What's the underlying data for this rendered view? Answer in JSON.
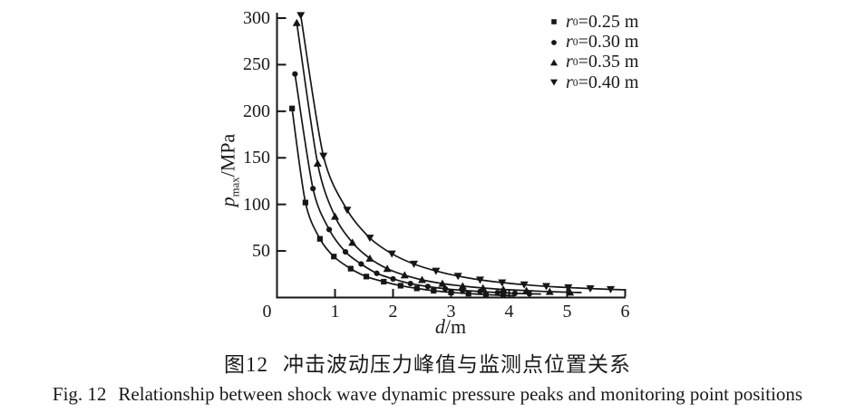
{
  "figure": {
    "caption_zh_label": "图12",
    "caption_zh_text": "冲击波动压力峰值与监测点位置关系",
    "caption_en_label": "Fig. 12",
    "caption_en_text": "Relationship between shock wave dynamic pressure peaks and monitoring point positions"
  },
  "chart_data": {
    "type": "line",
    "title": "",
    "xlabel": "d/m",
    "ylabel": "p_max/MPa",
    "xlabel_parts": {
      "var": "d",
      "unit": "/m"
    },
    "ylabel_parts": {
      "var": "p",
      "sub": "max",
      "unit": "/MPa"
    },
    "xlim": [
      0,
      6
    ],
    "ylim": [
      0,
      300
    ],
    "x_ticks": [
      0,
      1,
      2,
      3,
      4,
      5,
      6
    ],
    "y_ticks": [
      0,
      50,
      100,
      150,
      200,
      250,
      300
    ],
    "x_tick_labels": [
      "0",
      "1",
      "2",
      "3",
      "4",
      "5",
      "6"
    ],
    "y_tick_labels": [
      "50",
      "100",
      "150",
      "200",
      "250",
      "300"
    ],
    "grid": false,
    "legend_position": "top-right",
    "ink_color": "#161616",
    "series": [
      {
        "name": "r0=0.25 m",
        "marker": "square",
        "label_parts": {
          "var": "r",
          "sub": "0",
          "rest": "=0.25 m"
        },
        "points": [
          [
            0.26,
            203
          ],
          [
            0.49,
            102
          ],
          [
            0.74,
            63
          ],
          [
            0.98,
            44
          ],
          [
            1.27,
            31
          ],
          [
            1.54,
            22.5
          ],
          [
            1.84,
            17
          ],
          [
            2.13,
            12.7
          ],
          [
            2.41,
            9.8
          ],
          [
            2.7,
            7.3
          ],
          [
            3.0,
            5.5
          ],
          [
            3.3,
            4.2
          ],
          [
            3.6,
            3.1
          ],
          [
            3.9,
            2.3
          ]
        ],
        "line_end": [
          4.1,
          1.9
        ]
      },
      {
        "name": "r0=0.30 m",
        "marker": "circle",
        "label_parts": {
          "var": "r",
          "sub": "0",
          "rest": "=0.30 m"
        },
        "points": [
          [
            0.31,
            240
          ],
          [
            0.62,
            117
          ],
          [
            0.9,
            73
          ],
          [
            1.18,
            49
          ],
          [
            1.45,
            36
          ],
          [
            1.72,
            26
          ],
          [
            2.0,
            20
          ],
          [
            2.3,
            15
          ],
          [
            2.6,
            11.8
          ],
          [
            2.9,
            9.4
          ],
          [
            3.2,
            7.7
          ],
          [
            3.5,
            6.4
          ],
          [
            3.8,
            5.3
          ],
          [
            4.1,
            4.5
          ],
          [
            4.35,
            4.0
          ]
        ],
        "line_end": [
          4.55,
          3.8
        ]
      },
      {
        "name": "r0=0.35 m",
        "marker": "triangle-up",
        "label_parts": {
          "var": "r",
          "sub": "0",
          "rest": "=0.35 m"
        },
        "points": [
          [
            0.34,
            295
          ],
          [
            0.7,
            144
          ],
          [
            1.0,
            87
          ],
          [
            1.3,
            59
          ],
          [
            1.6,
            42
          ],
          [
            1.9,
            31
          ],
          [
            2.2,
            24
          ],
          [
            2.5,
            19
          ],
          [
            2.85,
            15
          ],
          [
            3.2,
            12.3
          ],
          [
            3.55,
            10.2
          ],
          [
            3.9,
            8.7
          ],
          [
            4.3,
            7.4
          ],
          [
            4.7,
            6.3
          ],
          [
            5.05,
            5.6
          ]
        ],
        "line_end": [
          5.25,
          5.3
        ]
      },
      {
        "name": "r0=0.40 m",
        "marker": "triangle-down",
        "label_parts": {
          "var": "r",
          "sub": "0",
          "rest": "=0.40 m"
        },
        "points": [
          [
            0.41,
            303
          ],
          [
            0.8,
            152
          ],
          [
            1.21,
            94
          ],
          [
            1.6,
            64
          ],
          [
            1.98,
            47
          ],
          [
            2.36,
            36
          ],
          [
            2.74,
            28.5
          ],
          [
            3.12,
            23
          ],
          [
            3.5,
            19
          ],
          [
            3.88,
            16
          ],
          [
            4.26,
            13.8
          ],
          [
            4.64,
            12
          ],
          [
            5.02,
            10.7
          ],
          [
            5.4,
            9.6
          ],
          [
            5.75,
            8.8
          ]
        ],
        "line_end": [
          6.0,
          8.3
        ]
      }
    ]
  }
}
